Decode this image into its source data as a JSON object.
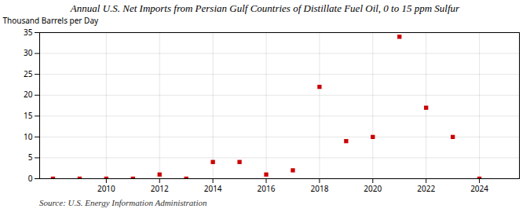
{
  "chart_data": {
    "type": "scatter",
    "title": "Annual U.S. Net Imports from Persian Gulf Countries of Distillate Fuel Oil, 0 to 15 ppm Sulfur",
    "ylabel": "Thousand Barrels per Day",
    "annotations": [
      "Source: U.S. Energy Information Administration"
    ],
    "x": [
      2008,
      2009,
      2010,
      2011,
      2012,
      2013,
      2014,
      2015,
      2016,
      2017,
      2018,
      2019,
      2020,
      2021,
      2022,
      2023,
      2024
    ],
    "values": [
      0,
      0,
      0,
      0,
      1,
      0,
      4,
      4,
      1,
      2,
      22,
      9,
      10,
      34,
      17,
      10,
      0
    ],
    "color": "#cc0000",
    "marker": "square",
    "xlim": [
      2007.5,
      2025.5
    ],
    "xticks": [
      2010,
      2012,
      2014,
      2016,
      2018,
      2020,
      2022,
      2024
    ],
    "ylim": [
      0,
      35
    ],
    "yticks": [
      0,
      5,
      10,
      15,
      20,
      25,
      30,
      35
    ],
    "grid": true
  }
}
